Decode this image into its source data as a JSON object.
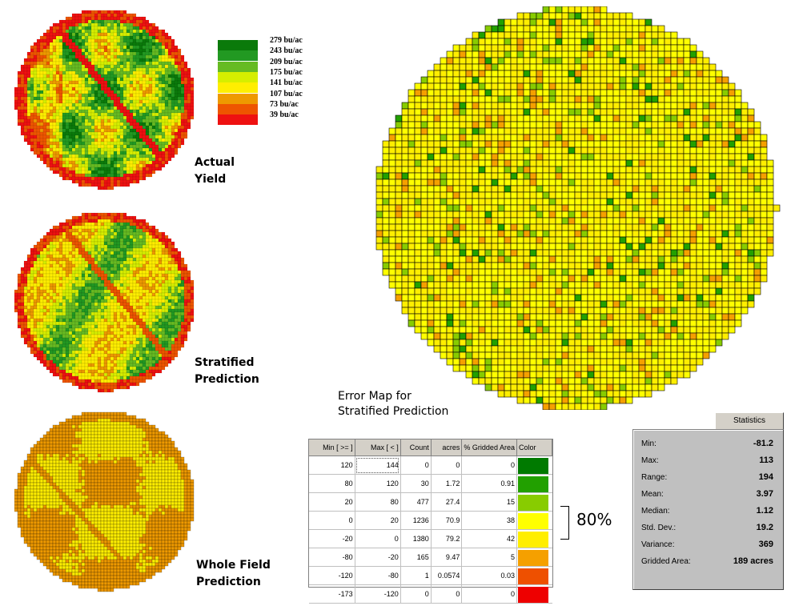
{
  "maps": {
    "actual": {
      "label_line1": "Actual",
      "label_line2": "Yield"
    },
    "stratified": {
      "label_line1": "Stratified",
      "label_line2": "Prediction"
    },
    "whole": {
      "label_line1": "Whole Field",
      "label_line2": "Prediction"
    }
  },
  "yield_legend": [
    {
      "label": "279 bu/ac",
      "color": "#0a7a0a"
    },
    {
      "label": "243 bu/ac",
      "color": "#229922"
    },
    {
      "label": "209 bu/ac",
      "color": "#66bb22"
    },
    {
      "label": "175 bu/ac",
      "color": "#d6ee00"
    },
    {
      "label": "141 bu/ac",
      "color": "#ffee00"
    },
    {
      "label": "107 bu/ac",
      "color": "#ee9900"
    },
    {
      "label": "73 bu/ac",
      "color": "#ee5500"
    },
    {
      "label": "39 bu/ac",
      "color": "#ee1111"
    }
  ],
  "error_map": {
    "title_line1": "Error Map for",
    "title_line2": "Stratified Prediction"
  },
  "error_table": {
    "headers": [
      "Min [ >= ]",
      "Max [ < ]",
      "Count",
      "acres",
      "% Gridded Area",
      "Color"
    ],
    "rows": [
      {
        "min": "120",
        "max": "144",
        "count": "0",
        "acres": "0",
        "pct": "0",
        "color": "#007a00"
      },
      {
        "min": "80",
        "max": "120",
        "count": "30",
        "acres": "1.72",
        "pct": "0.91",
        "color": "#22a000"
      },
      {
        "min": "20",
        "max": "80",
        "count": "477",
        "acres": "27.4",
        "pct": "15",
        "color": "#88cc00"
      },
      {
        "min": "0",
        "max": "20",
        "count": "1236",
        "acres": "70.9",
        "pct": "38",
        "color": "#ffff00"
      },
      {
        "min": "-20",
        "max": "0",
        "count": "1380",
        "acres": "79.2",
        "pct": "42",
        "color": "#ffee00"
      },
      {
        "min": "-80",
        "max": "-20",
        "count": "165",
        "acres": "9.47",
        "pct": "5",
        "color": "#f5a000"
      },
      {
        "min": "-120",
        "max": "-80",
        "count": "1",
        "acres": "0.0574",
        "pct": "0.03",
        "color": "#ee5000"
      },
      {
        "min": "-173",
        "max": "-120",
        "count": "0",
        "acres": "0",
        "pct": "0",
        "color": "#ee0000"
      }
    ]
  },
  "bracket_label": "80%",
  "statistics": {
    "tab": "Statistics",
    "rows": [
      {
        "label": "Min:",
        "value": "-81.2"
      },
      {
        "label": "Max:",
        "value": "113"
      },
      {
        "label": "Range:",
        "value": "194"
      },
      {
        "label": "Mean:",
        "value": "3.97"
      },
      {
        "label": "Median:",
        "value": "1.12"
      },
      {
        "label": "Std. Dev.:",
        "value": "19.2"
      },
      {
        "label": "Variance:",
        "value": "369"
      },
      {
        "label": "Gridded Area:",
        "value": "189 acres"
      }
    ]
  }
}
